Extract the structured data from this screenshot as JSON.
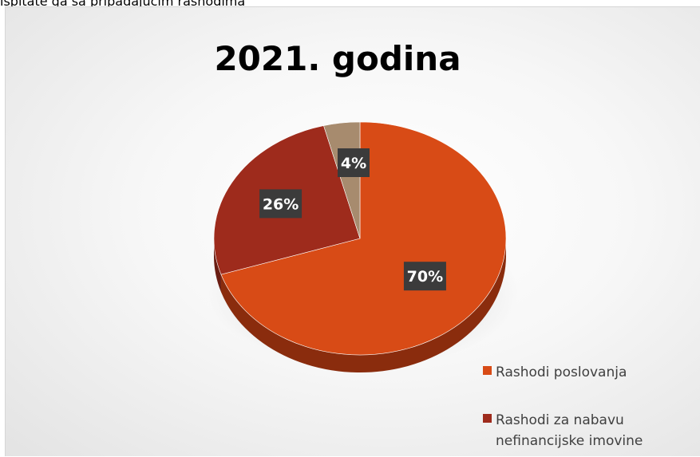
{
  "page": {
    "top_text": "ispitate ga sa pripadajućim rashodima"
  },
  "chart_data": {
    "type": "pie",
    "title": "2021. godina",
    "categories": [
      "Rashodi poslovanja",
      "Rashodi za nabavu nefinancijske imovine",
      ""
    ],
    "values": [
      70,
      26,
      4
    ],
    "labels": [
      "70%",
      "26%",
      "4%"
    ],
    "colors": [
      "#D84B16",
      "#9E2B1C",
      "#A78B6E"
    ],
    "side_colors": [
      "#8A2C0D",
      "#6A1D12",
      "#6F5C48"
    ],
    "legend_position": "bottom-right"
  },
  "legend": {
    "items": [
      {
        "label": "Rashodi poslovanja",
        "color": "#D84B16"
      },
      {
        "label": "Rashodi za nabavu",
        "label_line2": "nefinancijske imovine",
        "color": "#9E2B1C"
      }
    ]
  }
}
